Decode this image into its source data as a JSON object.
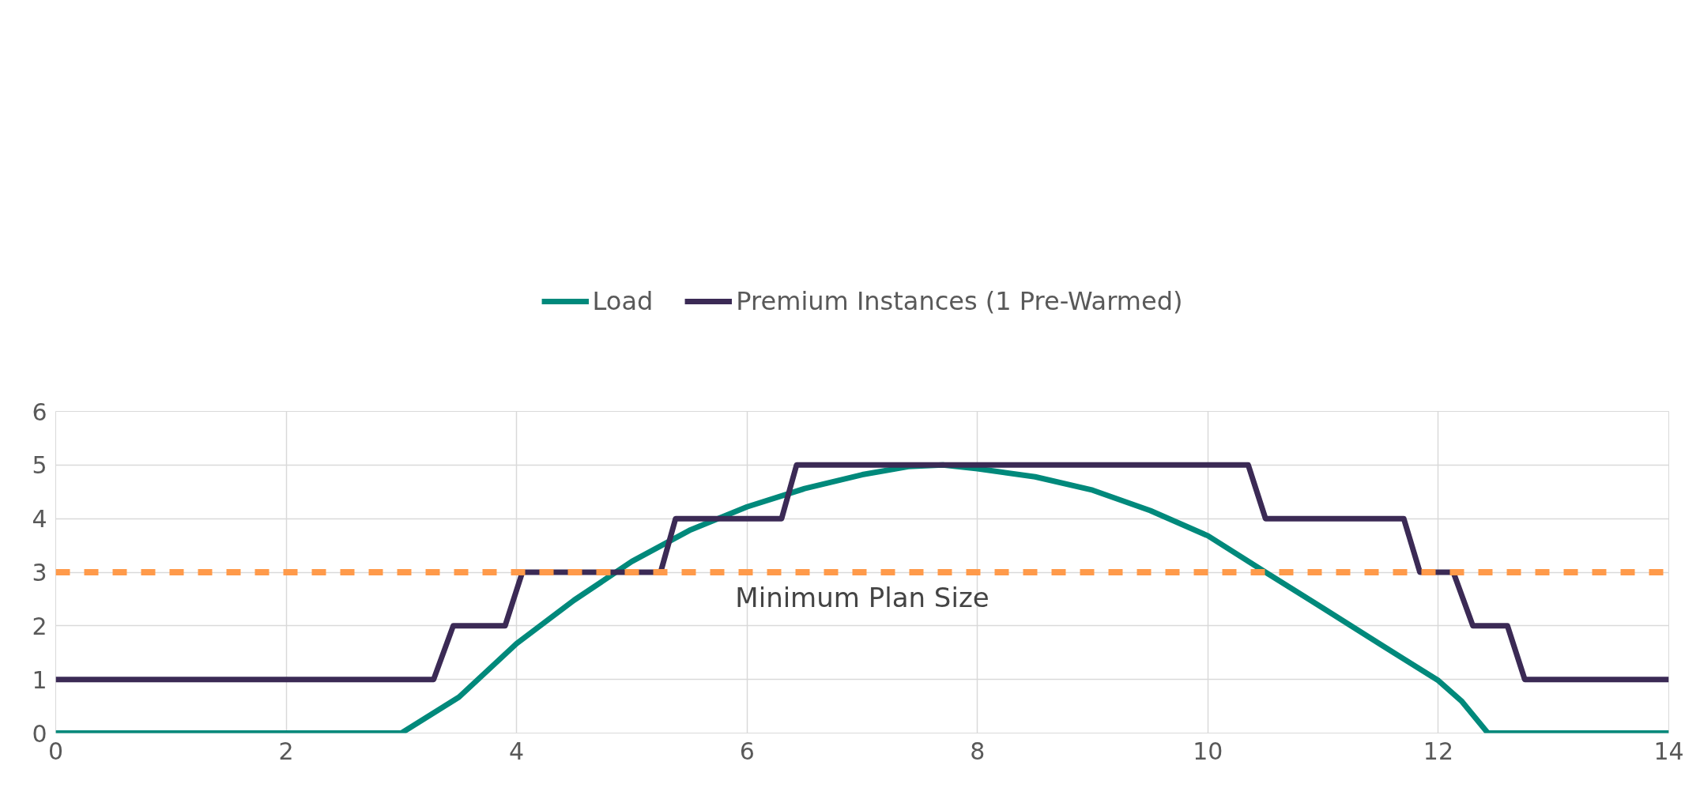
{
  "chart_data": {
    "type": "line",
    "series": [
      {
        "name": "Load",
        "color": "#00897b",
        "x": [
          0,
          3.0,
          3.5,
          4,
          4.5,
          5,
          5.5,
          6,
          6.5,
          7,
          7.4,
          7.7,
          8,
          8.5,
          9,
          9.5,
          10,
          10.5,
          11,
          11.5,
          12,
          12.2,
          12.43,
          14
        ],
        "values": [
          0,
          0,
          0.67,
          1.67,
          2.48,
          3.2,
          3.78,
          4.22,
          4.56,
          4.82,
          4.97,
          5.0,
          4.93,
          4.78,
          4.53,
          4.15,
          3.68,
          3.0,
          2.33,
          1.65,
          0.98,
          0.6,
          0,
          0
        ]
      },
      {
        "name": "Premium Instances (1 Pre-Warmed)",
        "color": "#3b2a55",
        "x": [
          0,
          3.28,
          3.45,
          3.9,
          4.05,
          5.25,
          5.38,
          6.3,
          6.43,
          10.35,
          10.5,
          11.7,
          11.84,
          12.13,
          12.3,
          12.6,
          12.75,
          14
        ],
        "values": [
          1,
          1,
          2,
          2,
          3,
          3,
          4,
          4,
          5,
          5,
          4,
          4,
          3,
          3,
          2,
          2,
          1,
          1
        ]
      }
    ],
    "xlim": [
      0,
      14
    ],
    "ylim": [
      0,
      6
    ],
    "xticks": [
      0,
      2,
      4,
      6,
      8,
      10,
      12,
      14
    ],
    "yticks": [
      0,
      1,
      2,
      3,
      4,
      5,
      6
    ],
    "ref_lines": [
      {
        "axis": "y",
        "value": 3,
        "label": "Minimum Plan Size",
        "color": "#ff9a4a",
        "line_style": "dashed"
      }
    ],
    "grid": true,
    "legend": "top",
    "marker": "none",
    "line_style": "solid"
  }
}
